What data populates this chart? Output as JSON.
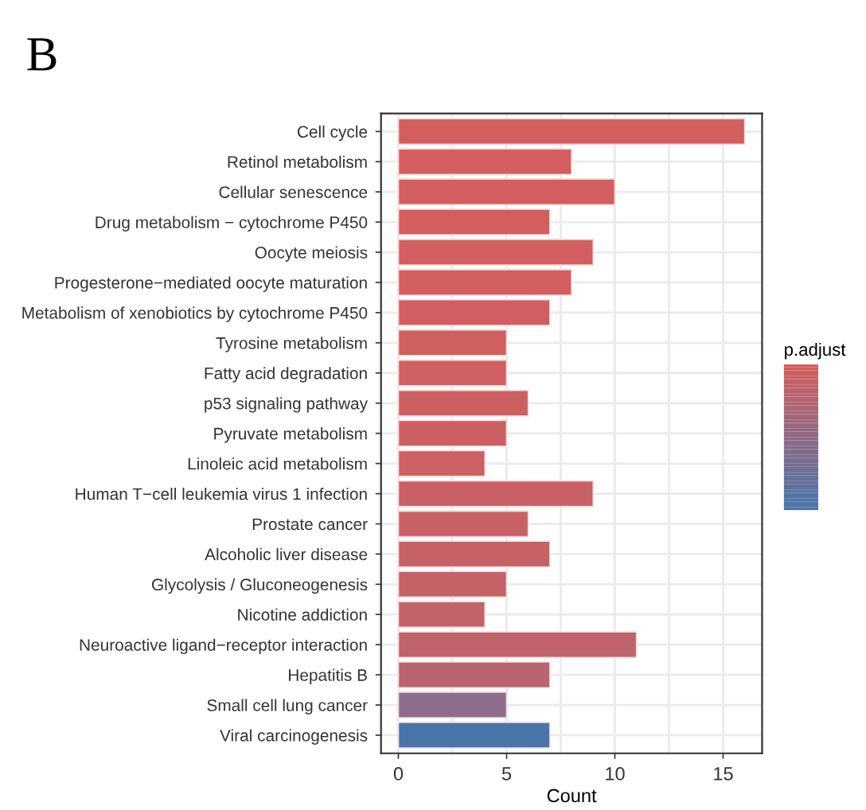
{
  "chart_data": {
    "type": "bar",
    "orientation": "horizontal",
    "title": "B",
    "xlabel": "Count",
    "clabel": "p.adjust",
    "categories": [
      "Cell cycle",
      "Retinol metabolism",
      "Cellular senescence",
      "Drug metabolism − cytochrome P450",
      "Oocyte meiosis",
      "Progesterone−mediated oocyte maturation",
      "Metabolism of xenobiotics by cytochrome P450",
      "Tyrosine metabolism",
      "Fatty acid degradation",
      "p53 signaling pathway",
      "Pyruvate metabolism",
      "Linoleic acid metabolism",
      "Human T−cell leukemia virus 1 infection",
      "Prostate cancer",
      "Alcoholic liver disease",
      "Glycolysis / Gluconeogenesis",
      "Nicotine addiction",
      "Neuroactive ligand−receptor interaction",
      "Hepatitis B",
      "Small cell lung cancer",
      "Viral carcinogenesis"
    ],
    "values": [
      16,
      8,
      10,
      7,
      9,
      8,
      7,
      5,
      5,
      6,
      5,
      4,
      9,
      6,
      7,
      5,
      4,
      11,
      7,
      5,
      7
    ],
    "colors": [
      "#d45e5e",
      "#d45e5e",
      "#d35e5f",
      "#d35e5f",
      "#d25e5f",
      "#d25e60",
      "#d15e60",
      "#d05f60",
      "#cf5f61",
      "#ce5f61",
      "#cd5f62",
      "#cc6063",
      "#c96065",
      "#c86166",
      "#c66167",
      "#c46268",
      "#c2636a",
      "#bf636c",
      "#ba646f",
      "#8e6d8c",
      "#4a75aa"
    ],
    "xlim": [
      -0.8,
      16.8
    ],
    "xticks": [
      0,
      {
        "value": 2.5,
        "label": null
      },
      5,
      {
        "value": 7.5,
        "label": null
      },
      10,
      {
        "value": 12.5,
        "label": null
      },
      15
    ],
    "grid": true
  }
}
